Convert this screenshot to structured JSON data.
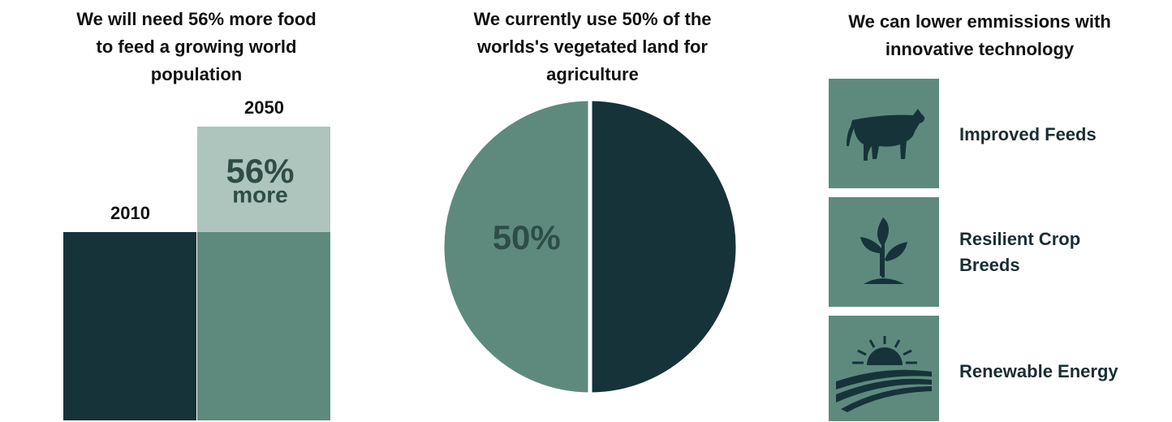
{
  "chart_data": [
    {
      "type": "bar",
      "stacked": true,
      "title": "We will need 56% more food to feed a growing world population",
      "categories": [
        "2010",
        "2050"
      ],
      "series": [
        {
          "colors": [
            "#16333a",
            "#5e8a7e"
          ],
          "values": [
            100,
            100
          ]
        },
        {
          "color": "#adc5bd",
          "values": [
            null,
            56
          ],
          "value_labels": [
            null,
            "56%"
          ],
          "annotation": "more"
        }
      ],
      "ylim": [
        0,
        156
      ]
    },
    {
      "type": "pie",
      "title": "We currently use 50% of the worlds's vegetated land for agriculture",
      "values": [
        50,
        50
      ],
      "value_labels": [
        null,
        "50%"
      ],
      "colors": [
        "#16333a",
        "#5e8a7e"
      ]
    }
  ],
  "technologies": {
    "title": "We can lower emmissions with innovative technology",
    "items": [
      "Improved Feeds",
      "Resilient Crop Breeds",
      "Renewable Energy"
    ]
  }
}
